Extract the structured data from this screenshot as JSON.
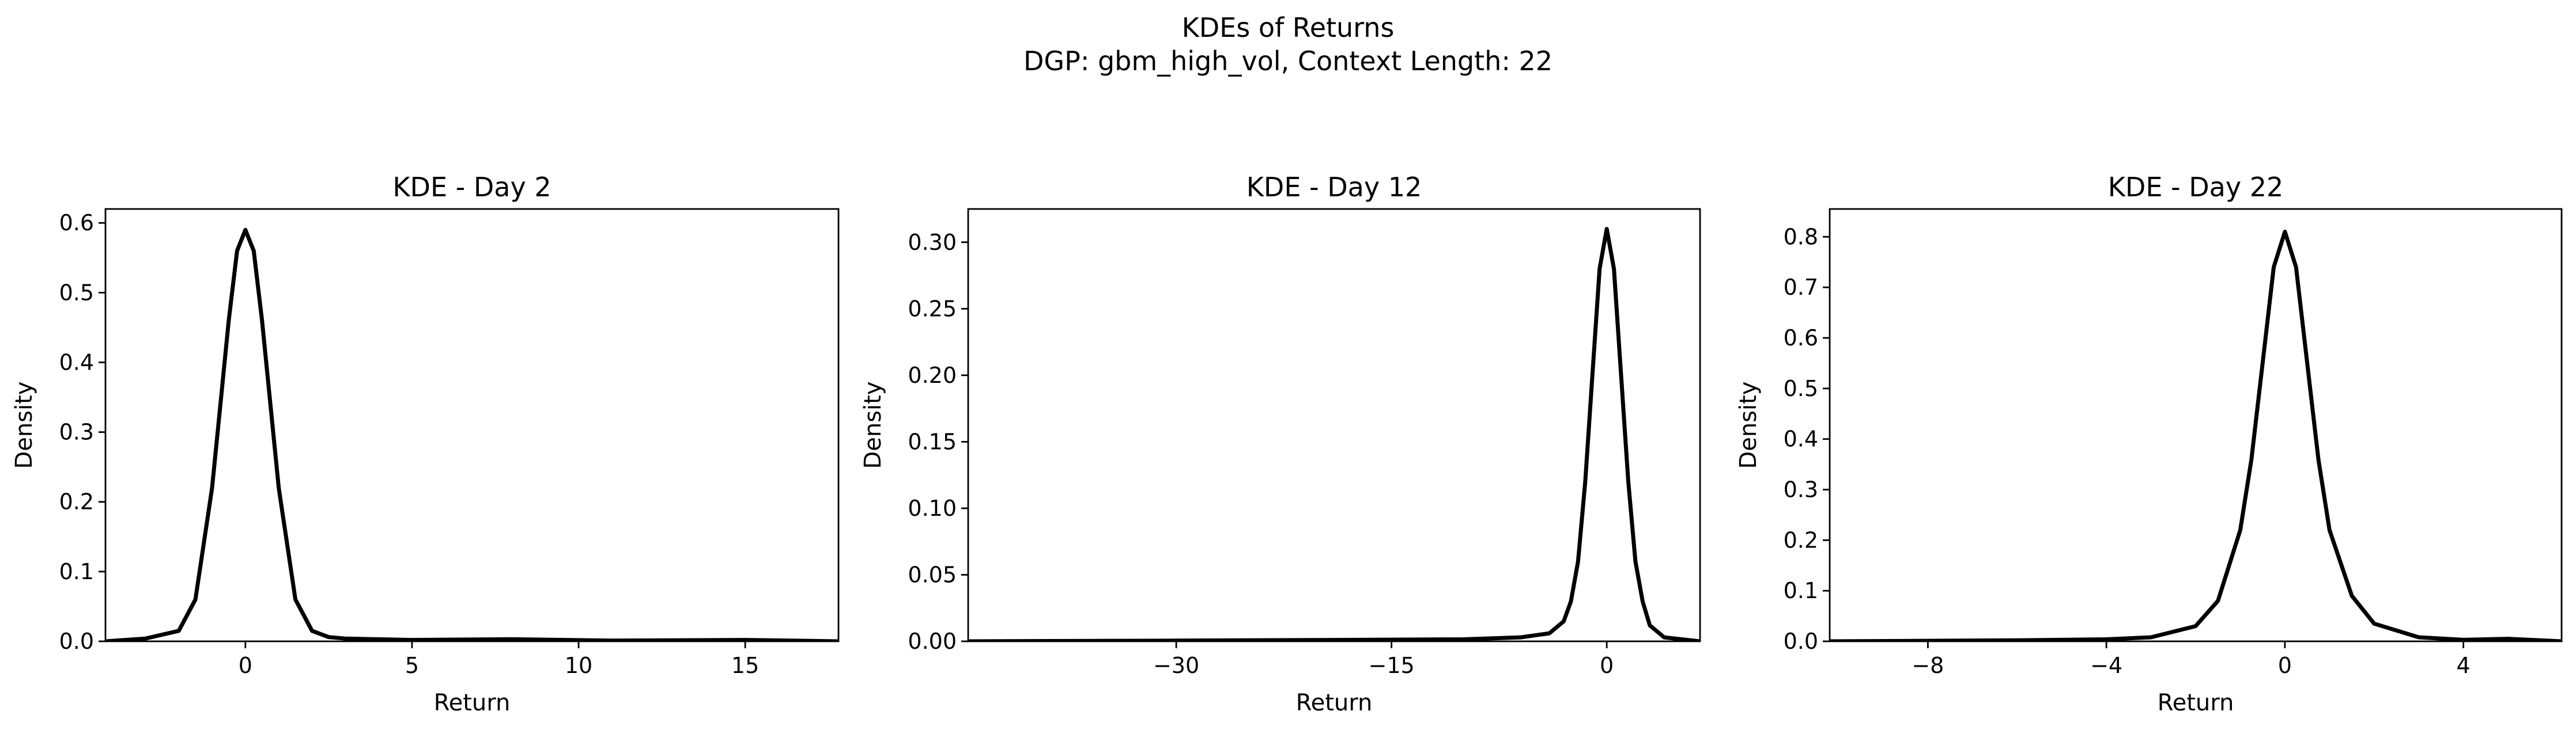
{
  "figure": {
    "suptitle_line1": "KDEs of Returns",
    "suptitle_line2": "DGP: gbm_high_vol, Context Length: 22"
  },
  "chart_data": [
    {
      "type": "line",
      "title": "KDE - Day 2",
      "xlabel": "Return",
      "ylabel": "Density",
      "xlim": [
        -4.2,
        17.8
      ],
      "ylim": [
        0,
        0.62
      ],
      "xticks": [
        0,
        5,
        10,
        15
      ],
      "xtick_labels": [
        "0",
        "5",
        "10",
        "15"
      ],
      "yticks": [
        0,
        0.1,
        0.2,
        0.3,
        0.4,
        0.5,
        0.6
      ],
      "ytick_labels": [
        "0.0",
        "0.1",
        "0.2",
        "0.3",
        "0.4",
        "0.5",
        "0.6"
      ],
      "grid": false,
      "color": "#000000",
      "x": [
        -4.2,
        -3.0,
        -2.0,
        -1.5,
        -1.0,
        -0.75,
        -0.5,
        -0.25,
        0.0,
        0.25,
        0.5,
        0.75,
        1.0,
        1.5,
        2.0,
        2.5,
        3.0,
        5.0,
        8.0,
        11.0,
        15.0,
        17.8
      ],
      "y": [
        0.0,
        0.004,
        0.015,
        0.06,
        0.22,
        0.34,
        0.46,
        0.56,
        0.59,
        0.56,
        0.46,
        0.34,
        0.22,
        0.06,
        0.015,
        0.006,
        0.004,
        0.002,
        0.003,
        0.001,
        0.002,
        0.0
      ]
    },
    {
      "type": "line",
      "title": "KDE - Day 12",
      "xlabel": "Return",
      "ylabel": "Density",
      "xlim": [
        -44.5,
        6.5
      ],
      "ylim": [
        0,
        0.325
      ],
      "xticks": [
        -30,
        -15,
        0
      ],
      "xtick_labels": [
        "−30",
        "−15",
        "0"
      ],
      "yticks": [
        0,
        0.05,
        0.1,
        0.15,
        0.2,
        0.25,
        0.3
      ],
      "ytick_labels": [
        "0.00",
        "0.05",
        "0.10",
        "0.15",
        "0.20",
        "0.25",
        "0.30"
      ],
      "grid": false,
      "color": "#000000",
      "x": [
        -44.5,
        -30.0,
        -20.0,
        -10.0,
        -6.0,
        -4.0,
        -3.0,
        -2.5,
        -2.0,
        -1.5,
        -1.0,
        -0.5,
        0.0,
        0.5,
        1.0,
        1.5,
        2.0,
        2.5,
        3.0,
        4.0,
        6.5
      ],
      "y": [
        0.0,
        0.0005,
        0.001,
        0.0015,
        0.003,
        0.006,
        0.015,
        0.03,
        0.06,
        0.12,
        0.2,
        0.28,
        0.31,
        0.28,
        0.2,
        0.12,
        0.06,
        0.03,
        0.012,
        0.003,
        0.0
      ]
    },
    {
      "type": "line",
      "title": "KDE - Day 22",
      "xlabel": "Return",
      "ylabel": "Density",
      "xlim": [
        -10.2,
        6.2
      ],
      "ylim": [
        0,
        0.855
      ],
      "xticks": [
        -8,
        -4,
        0,
        4
      ],
      "xtick_labels": [
        "−8",
        "−4",
        "0",
        "4"
      ],
      "yticks": [
        0,
        0.1,
        0.2,
        0.3,
        0.4,
        0.5,
        0.6,
        0.7,
        0.8
      ],
      "ytick_labels": [
        "0.0",
        "0.1",
        "0.2",
        "0.3",
        "0.4",
        "0.5",
        "0.6",
        "0.7",
        "0.8"
      ],
      "grid": false,
      "color": "#000000",
      "x": [
        -10.2,
        -8.0,
        -6.0,
        -4.0,
        -3.0,
        -2.0,
        -1.5,
        -1.0,
        -0.75,
        -0.5,
        -0.25,
        0.0,
        0.25,
        0.5,
        0.75,
        1.0,
        1.5,
        2.0,
        3.0,
        4.0,
        5.0,
        6.2
      ],
      "y": [
        0.0,
        0.001,
        0.002,
        0.004,
        0.008,
        0.03,
        0.08,
        0.22,
        0.36,
        0.55,
        0.74,
        0.81,
        0.74,
        0.55,
        0.36,
        0.22,
        0.09,
        0.035,
        0.008,
        0.003,
        0.005,
        0.0
      ]
    }
  ]
}
